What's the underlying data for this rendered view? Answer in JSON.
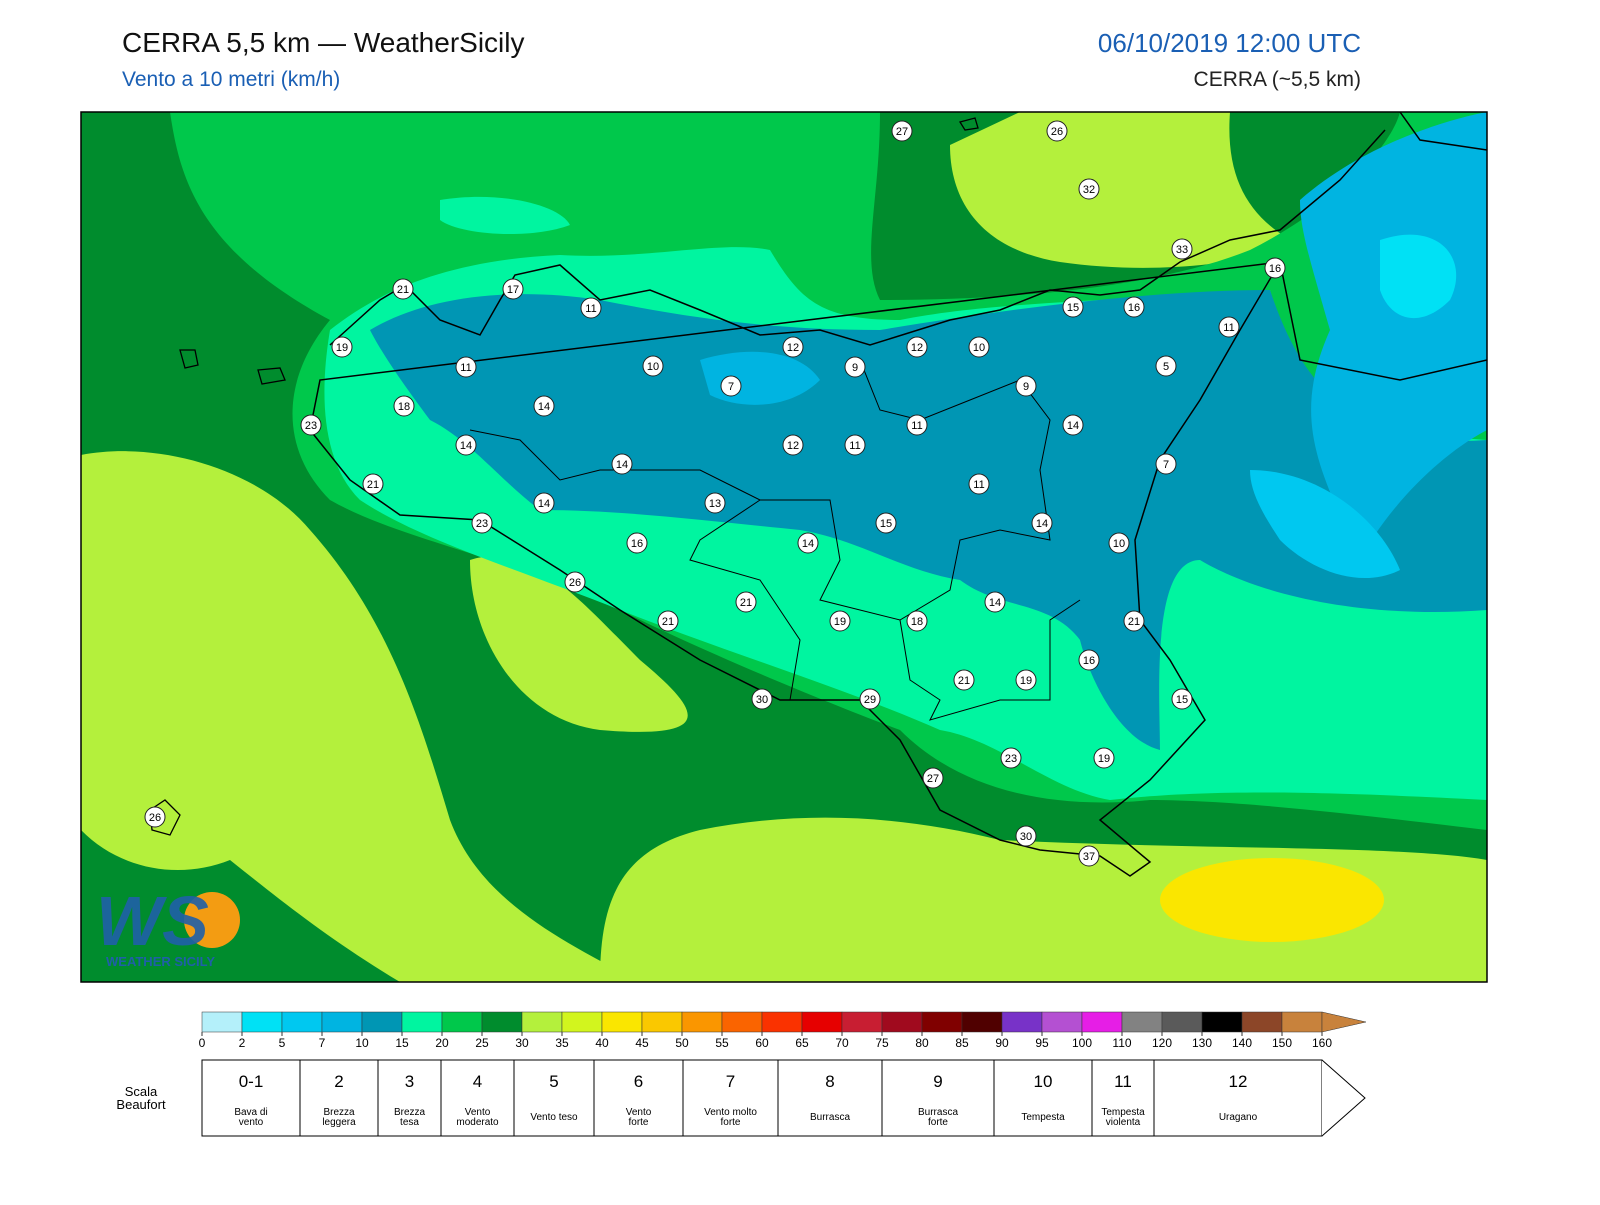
{
  "header": {
    "title": "CERRA 5,5 km — WeatherSicily",
    "subtitle": "Vento a 10 metri (km/h)",
    "datetime": "06/10/2019 12:00 UTC",
    "model": "CERRA (~5,5 km)"
  },
  "map": {
    "stations": [
      27,
      26,
      32,
      33,
      16,
      21,
      17,
      11,
      15,
      16,
      11,
      19,
      12,
      12,
      10,
      11,
      10,
      9,
      5,
      7,
      9,
      18,
      14,
      23,
      11,
      14,
      14,
      12,
      11,
      14,
      7,
      21,
      11,
      14,
      13,
      23,
      15,
      14,
      16,
      14,
      10,
      26,
      21,
      14,
      21,
      19,
      18,
      21,
      16,
      21,
      19,
      30,
      29,
      15,
      23,
      19,
      27,
      26,
      30,
      37
    ]
  },
  "logo": {
    "mark": "WS",
    "name": "WEATHER SICILY"
  },
  "colorbar": {
    "levels": [
      0,
      2,
      5,
      7,
      10,
      15,
      20,
      25,
      30,
      35,
      40,
      45,
      50,
      55,
      60,
      65,
      70,
      75,
      80,
      85,
      90,
      95,
      100,
      110,
      120,
      130,
      140,
      150,
      160
    ],
    "colors": [
      "#b4f0fa",
      "#00e1f5",
      "#00c8f0",
      "#00b4e1",
      "#0096b4",
      "#00f5a0",
      "#00c84b",
      "#008c2d",
      "#b4f03c",
      "#d2f51e",
      "#fae600",
      "#fac800",
      "#fa9600",
      "#fa6400",
      "#fa3200",
      "#e60000",
      "#c81e32",
      "#a00a1e",
      "#800000",
      "#500000",
      "#7832c8",
      "#b450d2",
      "#e61ee6",
      "#828282",
      "#5a5a5a",
      "#000000",
      "#8c4628",
      "#c8823c"
    ]
  },
  "beaufort": {
    "label": [
      "Scala",
      "Beaufort"
    ],
    "forces": [
      {
        "force": "0-1",
        "desc": [
          "Bava di",
          "vento"
        ]
      },
      {
        "force": "2",
        "desc": [
          "Brezza",
          "leggera"
        ]
      },
      {
        "force": "3",
        "desc": [
          "Brezza",
          "tesa"
        ]
      },
      {
        "force": "4",
        "desc": [
          "Vento",
          "moderato"
        ]
      },
      {
        "force": "5",
        "desc": [
          "Vento teso"
        ]
      },
      {
        "force": "6",
        "desc": [
          "Vento",
          "forte"
        ]
      },
      {
        "force": "7",
        "desc": [
          "Vento molto",
          "forte"
        ]
      },
      {
        "force": "8",
        "desc": [
          "Burrasca"
        ]
      },
      {
        "force": "9",
        "desc": [
          "Burrasca",
          "forte"
        ]
      },
      {
        "force": "10",
        "desc": [
          "Tempesta"
        ]
      },
      {
        "force": "11",
        "desc": [
          "Tempesta",
          "violenta"
        ]
      },
      {
        "force": "12",
        "desc": [
          "Uragano"
        ]
      }
    ]
  }
}
